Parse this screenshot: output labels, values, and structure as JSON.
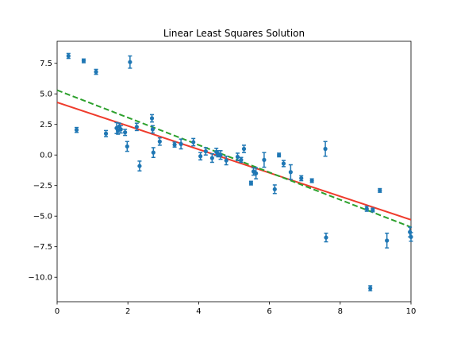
{
  "chart_data": {
    "type": "scatter",
    "title": "Linear Least Squares Solution",
    "xlabel": "",
    "ylabel": "",
    "xlim": [
      0,
      10
    ],
    "ylim": [
      -12.0,
      9.3
    ],
    "x_ticks": [
      0,
      2,
      4,
      6,
      8,
      10
    ],
    "x_tick_labels": [
      "0",
      "2",
      "4",
      "6",
      "8",
      "10"
    ],
    "y_ticks": [
      7.5,
      5.0,
      2.5,
      0.0,
      -2.5,
      -5.0,
      -7.5,
      -10.0
    ],
    "y_tick_labels": [
      "7.5",
      "5.0",
      "2.5",
      "0.0",
      "−2.5",
      "−5.0",
      "−7.5",
      "−10.0"
    ],
    "grid": false,
    "legend": "none",
    "colors": {
      "points": "#1f77b4",
      "fit_line": "#ef3b2c",
      "dashed_line": "#2ca02c"
    },
    "lines": [
      {
        "style": "solid",
        "color": "#ef3b2c",
        "x": [
          0,
          10
        ],
        "y": [
          4.3,
          -5.3
        ]
      },
      {
        "style": "dashed",
        "color": "#2ca02c",
        "x": [
          0,
          10
        ],
        "y": [
          5.3,
          -5.9
        ]
      }
    ],
    "points": [
      {
        "x": 0.32,
        "y": 8.1,
        "err": 0.2
      },
      {
        "x": 0.55,
        "y": 2.05,
        "err": 0.2
      },
      {
        "x": 0.75,
        "y": 7.7,
        "err": 0.15
      },
      {
        "x": 1.1,
        "y": 6.8,
        "err": 0.2
      },
      {
        "x": 1.38,
        "y": 1.75,
        "err": 0.25
      },
      {
        "x": 1.68,
        "y": 2.2,
        "err": 0.45
      },
      {
        "x": 1.72,
        "y": 2.0,
        "err": 0.3
      },
      {
        "x": 1.76,
        "y": 2.35,
        "err": 0.25
      },
      {
        "x": 1.8,
        "y": 2.1,
        "err": 0.3
      },
      {
        "x": 1.92,
        "y": 1.85,
        "err": 0.25
      },
      {
        "x": 1.98,
        "y": 0.7,
        "err": 0.4
      },
      {
        "x": 2.06,
        "y": 7.6,
        "err": 0.5
      },
      {
        "x": 2.25,
        "y": 2.3,
        "err": 0.3
      },
      {
        "x": 2.33,
        "y": -0.9,
        "err": 0.4
      },
      {
        "x": 2.68,
        "y": 3.0,
        "err": 0.3
      },
      {
        "x": 2.7,
        "y": 2.1,
        "err": 0.3
      },
      {
        "x": 2.72,
        "y": 0.2,
        "err": 0.4
      },
      {
        "x": 2.9,
        "y": 1.1,
        "err": 0.3
      },
      {
        "x": 3.32,
        "y": 0.85,
        "err": 0.2
      },
      {
        "x": 3.5,
        "y": 0.9,
        "err": 0.4
      },
      {
        "x": 3.85,
        "y": 1.05,
        "err": 0.3
      },
      {
        "x": 4.05,
        "y": -0.1,
        "err": 0.3
      },
      {
        "x": 4.2,
        "y": 0.3,
        "err": 0.3
      },
      {
        "x": 4.38,
        "y": -0.25,
        "err": 0.35
      },
      {
        "x": 4.5,
        "y": 0.25,
        "err": 0.3
      },
      {
        "x": 4.55,
        "y": 0.1,
        "err": 0.25
      },
      {
        "x": 4.62,
        "y": 0.0,
        "err": 0.35
      },
      {
        "x": 4.78,
        "y": -0.45,
        "err": 0.35
      },
      {
        "x": 5.1,
        "y": -0.15,
        "err": 0.3
      },
      {
        "x": 5.2,
        "y": -0.4,
        "err": 0.2
      },
      {
        "x": 5.28,
        "y": 0.5,
        "err": 0.3
      },
      {
        "x": 5.48,
        "y": -2.3,
        "err": 0.15
      },
      {
        "x": 5.55,
        "y": -1.35,
        "err": 0.3
      },
      {
        "x": 5.62,
        "y": -1.5,
        "err": 0.45
      },
      {
        "x": 5.85,
        "y": -0.4,
        "err": 0.6
      },
      {
        "x": 6.15,
        "y": -2.8,
        "err": 0.35
      },
      {
        "x": 6.27,
        "y": 0.0,
        "err": 0.15
      },
      {
        "x": 6.4,
        "y": -0.7,
        "err": 0.25
      },
      {
        "x": 6.6,
        "y": -1.4,
        "err": 0.6
      },
      {
        "x": 6.9,
        "y": -1.9,
        "err": 0.2
      },
      {
        "x": 7.2,
        "y": -2.1,
        "err": 0.15
      },
      {
        "x": 7.58,
        "y": 0.5,
        "err": 0.6
      },
      {
        "x": 7.6,
        "y": -6.75,
        "err": 0.35
      },
      {
        "x": 8.75,
        "y": -4.4,
        "err": 0.2
      },
      {
        "x": 8.85,
        "y": -10.9,
        "err": 0.2
      },
      {
        "x": 8.92,
        "y": -4.5,
        "err": 0.15
      },
      {
        "x": 9.12,
        "y": -2.9,
        "err": 0.15
      },
      {
        "x": 9.32,
        "y": -7.0,
        "err": 0.6
      },
      {
        "x": 9.97,
        "y": -6.3,
        "err": 0.4
      },
      {
        "x": 10.0,
        "y": -6.7,
        "err": 0.35
      }
    ]
  }
}
